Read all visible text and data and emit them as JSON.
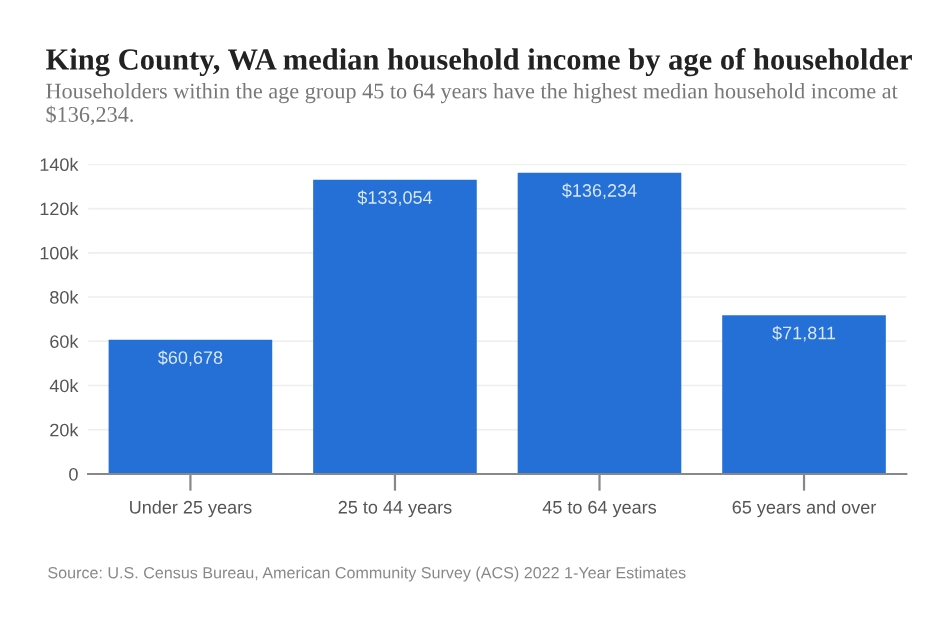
{
  "chart_data": {
    "type": "bar",
    "title": "King County, WA median household income by age of householder",
    "subtitle": "Householders within the age group 45 to 64 years have the highest median household income at $136,234.",
    "categories": [
      "Under 25 years",
      "25 to 44 years",
      "45 to 64 years",
      "65 years and over"
    ],
    "values": [
      60678,
      133054,
      136234,
      71811
    ],
    "value_labels": [
      "$60,678",
      "$133,054",
      "$136,234",
      "$71,811"
    ],
    "color": "#2470d6",
    "ylim": [
      0,
      140000
    ],
    "yticks": [
      {
        "value": 0,
        "label": "0"
      },
      {
        "value": 20000,
        "label": "20k"
      },
      {
        "value": 40000,
        "label": "40k"
      },
      {
        "value": 60000,
        "label": "60k"
      },
      {
        "value": 80000,
        "label": "80k"
      },
      {
        "value": 100000,
        "label": "100k"
      },
      {
        "value": 120000,
        "label": "120k"
      },
      {
        "value": 140000,
        "label": "140k"
      }
    ],
    "grid": "y",
    "annotations": [
      "Source: U.S. Census Bureau, American Community Survey (ACS) 2022 1-Year Estimates"
    ]
  }
}
